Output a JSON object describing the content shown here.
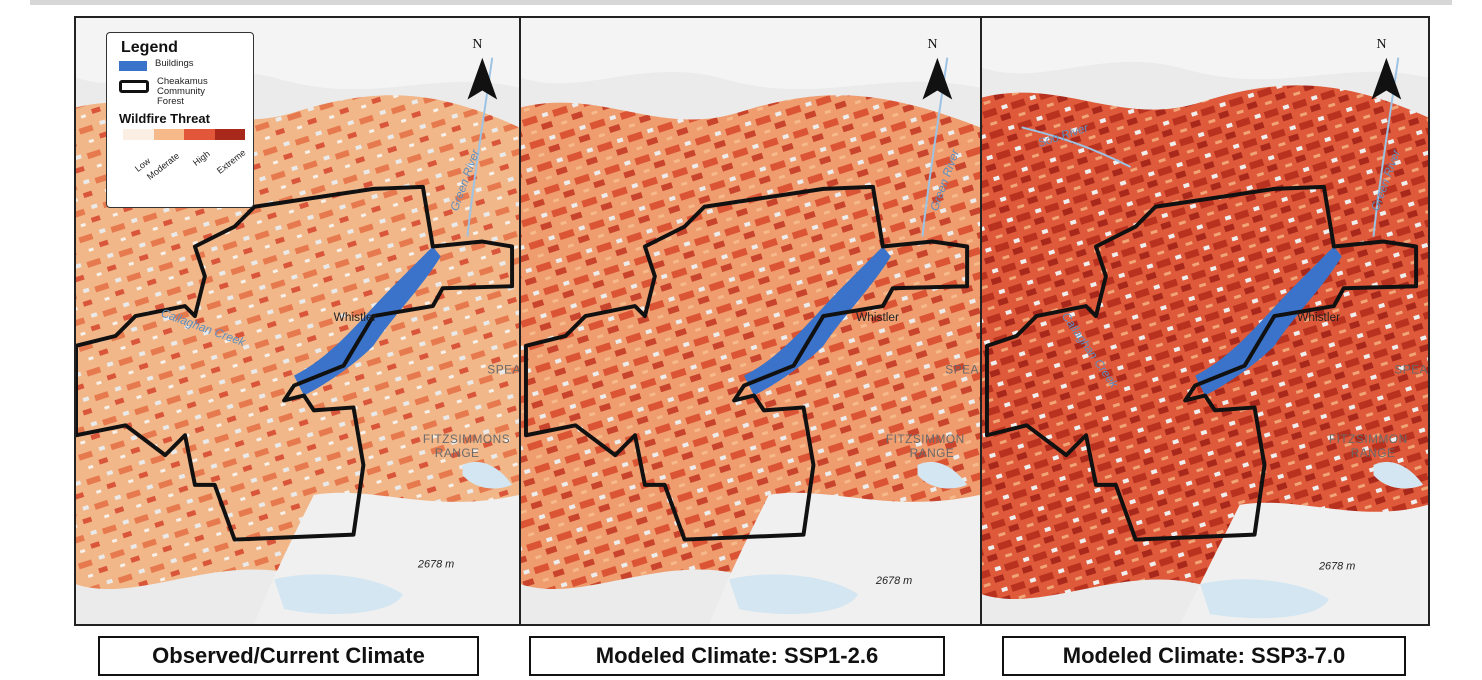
{
  "panels": [
    {
      "id": "observed",
      "caption": "Observed/Current Climate",
      "threat_level": "moderate",
      "labels": {
        "town": "Whistler",
        "creek": "Callaghan Creek",
        "river": "Green River",
        "range_a": "SPEAR",
        "range_b": "FITZSIMMONS",
        "range_c": "RANGE",
        "elevation": "2678 m",
        "north": "N"
      }
    },
    {
      "id": "ssp1",
      "caption": "Modeled Climate: SSP1-2.6",
      "threat_level": "high",
      "labels": {
        "town": "Whistler",
        "river": "Green River",
        "range_a": "SPEA",
        "range_b": "FITZSIMMON",
        "range_c": "RANGE",
        "elevation": "2678 m",
        "north": "N"
      }
    },
    {
      "id": "ssp3",
      "caption": "Modeled Climate: SSP3-7.0",
      "threat_level": "extreme",
      "labels": {
        "town": "Whistler",
        "creek": "Callaghan Creek",
        "river": "Green River",
        "river2": "Soo River",
        "range_a": "SPEA",
        "range_b": "FITZSIMMON",
        "range_c": "RANGE",
        "elevation": "2678 m",
        "north": "N"
      }
    }
  ],
  "legend": {
    "title": "Legend",
    "buildings": "Buildings",
    "boundary": "Cheakamus Community Forest",
    "threat_title": "Wildfire Threat",
    "classes": [
      {
        "label": "Low",
        "color": "#fbeee2"
      },
      {
        "label": "Moderate",
        "color": "#f6b98a"
      },
      {
        "label": "High",
        "color": "#e2563a"
      },
      {
        "label": "Extreme",
        "color": "#a8281c"
      }
    ]
  },
  "colors": {
    "buildings": "#3a73c9",
    "boundary": "#111111",
    "water": "#d4e6f1",
    "snow": "#f2f2f2"
  }
}
